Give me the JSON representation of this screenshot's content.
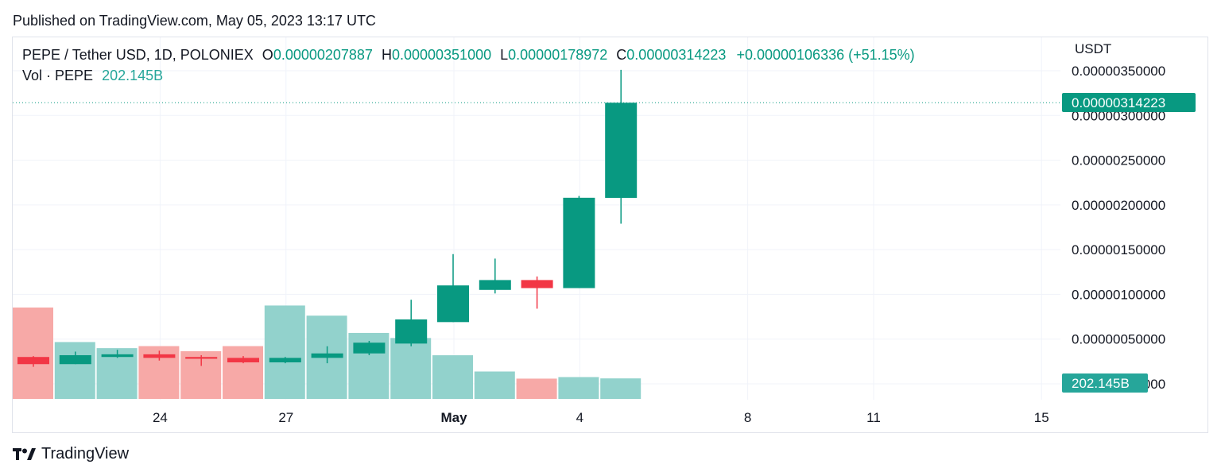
{
  "header": {
    "published": "Published on TradingView.com, May 05, 2023 13:17 UTC"
  },
  "legend": {
    "symbol": "PEPE / Tether USD, 1D, POLONIEX",
    "o_label": "O",
    "o_value": "0.00000207887",
    "h_label": "H",
    "h_value": "0.00000351000",
    "l_label": "L",
    "l_value": "0.00000178972",
    "c_label": "C",
    "c_value": "0.00000314223",
    "change": "+0.00000106336 (+51.15%)",
    "vol_label": "Vol · PEPE",
    "vol_value": "202.145B"
  },
  "price_axis": {
    "unit": "USDT",
    "last_price_label": "0.00000314223",
    "last_volume_label": "202.145B"
  },
  "footer": {
    "brand": "TradingView"
  },
  "colors": {
    "up": "#089981",
    "down": "#f23645",
    "vol_up": "#92d2cc",
    "vol_down": "#f7a9a7",
    "grid": "#f0f3fa"
  },
  "chart_data": {
    "type": "candlestick",
    "title": "PEPE / Tether USD, 1D, POLONIEX",
    "ylabel": "USDT",
    "ylim": [
      0.0,
      3.6e-06
    ],
    "y_ticks": [
      {
        "value": 3.5e-06,
        "label": "0.00000350000"
      },
      {
        "value": 3e-06,
        "label": "0.00000300000"
      },
      {
        "value": 2.5e-06,
        "label": "0.00000250000"
      },
      {
        "value": 2e-06,
        "label": "0.00000200000"
      },
      {
        "value": 1.5e-06,
        "label": "0.00000150000"
      },
      {
        "value": 1e-06,
        "label": "0.00000100000"
      },
      {
        "value": 5e-07,
        "label": "0.00000050000"
      },
      {
        "value": 0.0,
        "label": "0.00000000000"
      }
    ],
    "x_ticks": [
      {
        "label": "24",
        "index": 3.5,
        "bold": false
      },
      {
        "label": "27",
        "index": 6.5,
        "bold": false
      },
      {
        "label": "May",
        "index": 10.5,
        "bold": true
      },
      {
        "label": "4",
        "index": 13.5,
        "bold": false
      },
      {
        "label": "8",
        "index": 17.5,
        "bold": false
      },
      {
        "label": "11",
        "index": 20.5,
        "bold": false
      },
      {
        "label": "15",
        "index": 24.5,
        "bold": false
      }
    ],
    "candles": [
      {
        "o": 3e-07,
        "h": 3.1e-07,
        "l": 1.9e-07,
        "c": 2.2e-07
      },
      {
        "o": 2.2e-07,
        "h": 3.6e-07,
        "l": 2.2e-07,
        "c": 3.2e-07
      },
      {
        "o": 3e-07,
        "h": 3.8e-07,
        "l": 2.9e-07,
        "c": 3.3e-07
      },
      {
        "o": 3.3e-07,
        "h": 3.7e-07,
        "l": 2.6e-07,
        "c": 2.9e-07
      },
      {
        "o": 3e-07,
        "h": 3.2e-07,
        "l": 2e-07,
        "c": 2.8e-07
      },
      {
        "o": 2.9e-07,
        "h": 3.1e-07,
        "l": 2.3e-07,
        "c": 2.4e-07
      },
      {
        "o": 2.4e-07,
        "h": 3e-07,
        "l": 2.3e-07,
        "c": 2.9e-07
      },
      {
        "o": 2.9e-07,
        "h": 4.2e-07,
        "l": 2.3e-07,
        "c": 3.4e-07
      },
      {
        "o": 3.4e-07,
        "h": 4.8e-07,
        "l": 3.2e-07,
        "c": 4.6e-07
      },
      {
        "o": 4.5e-07,
        "h": 9.4e-07,
        "l": 4.2e-07,
        "c": 7.2e-07
      },
      {
        "o": 6.9e-07,
        "h": 1.45e-06,
        "l": 6.9e-07,
        "c": 1.1e-06
      },
      {
        "o": 1.05e-06,
        "h": 1.4e-06,
        "l": 1.01e-06,
        "c": 1.16e-06
      },
      {
        "o": 1.16e-06,
        "h": 1.2e-06,
        "l": 8.4e-07,
        "c": 1.07e-06
      },
      {
        "o": 1.07e-06,
        "h": 2.1e-06,
        "l": 1.07e-06,
        "c": 2.08e-06
      },
      {
        "o": 2.07887e-06,
        "h": 3.51e-06,
        "l": 1.78972e-06,
        "c": 3.14223e-06
      }
    ],
    "volume": {
      "label": "Vol · PEPE",
      "values_b": [
        900,
        560,
        500,
        520,
        470,
        520,
        920,
        820,
        650,
        600,
        430,
        270,
        200,
        215,
        202.145
      ],
      "last_label": "202.145B"
    }
  }
}
